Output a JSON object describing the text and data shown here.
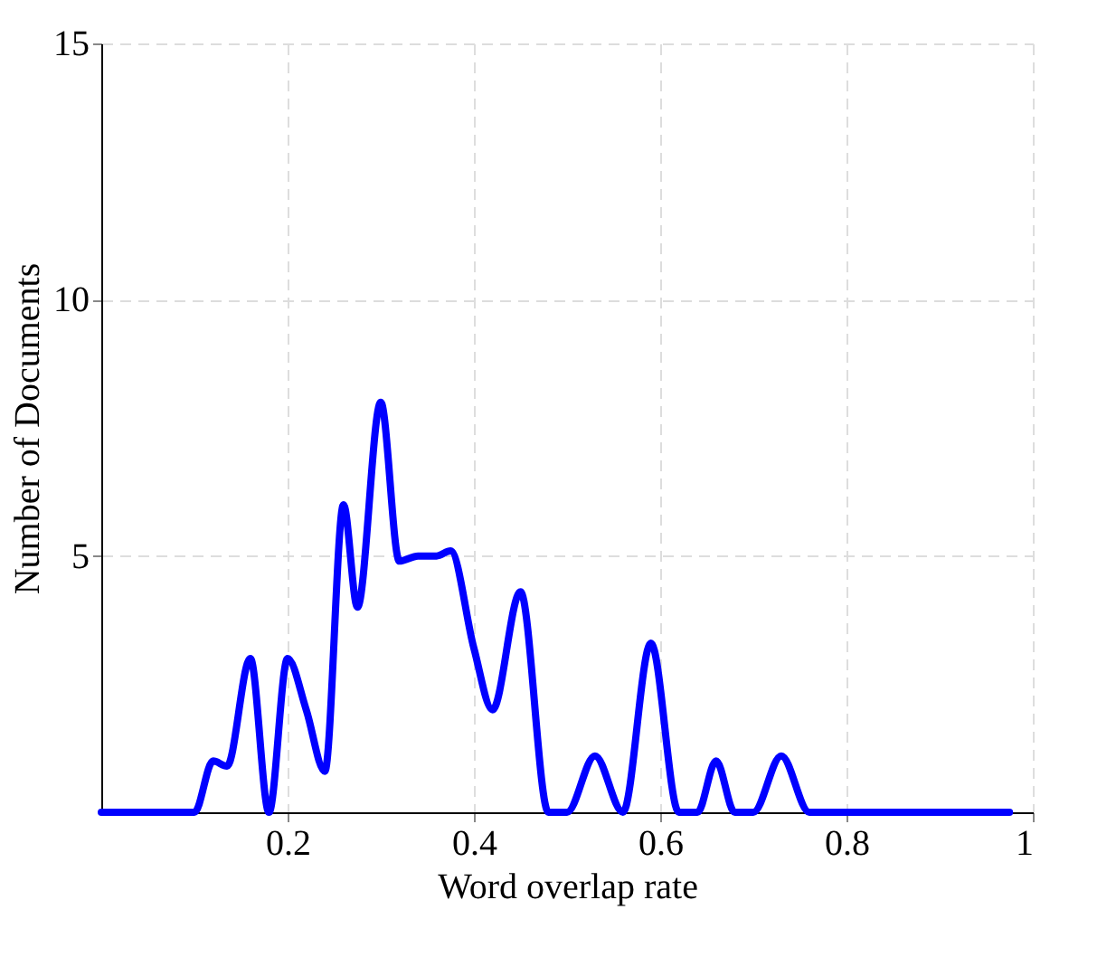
{
  "chart_data": {
    "type": "line",
    "xlabel": "Word overlap rate",
    "ylabel": "Number of Documents",
    "series": [
      {
        "color": "#0000ff",
        "x": [
          0,
          0.08,
          0.1,
          0.12,
          0.135,
          0.16,
          0.18,
          0.2,
          0.22,
          0.24,
          0.26,
          0.275,
          0.3,
          0.32,
          0.34,
          0.36,
          0.375,
          0.4,
          0.42,
          0.45,
          0.48,
          0.5,
          0.53,
          0.56,
          0.59,
          0.62,
          0.64,
          0.66,
          0.68,
          0.7,
          0.73,
          0.76,
          0.8,
          0.975
        ],
        "values": [
          0,
          0,
          0,
          1,
          0.9,
          3,
          0,
          3,
          2,
          0.8,
          6,
          4,
          8,
          4.9,
          5,
          5,
          5.1,
          3.2,
          2,
          4.3,
          0,
          0,
          1.1,
          0,
          3.3,
          0,
          0,
          1,
          0,
          0,
          1.1,
          0,
          0,
          0
        ]
      }
    ],
    "xlim": [
      0,
      1
    ],
    "xticks": [
      0.2,
      0.4,
      0.6,
      0.8,
      1
    ],
    "ylim": [
      0,
      15
    ],
    "yticks": [
      5,
      10,
      15
    ],
    "grid": true,
    "line_style": "solid",
    "marker": "none"
  }
}
